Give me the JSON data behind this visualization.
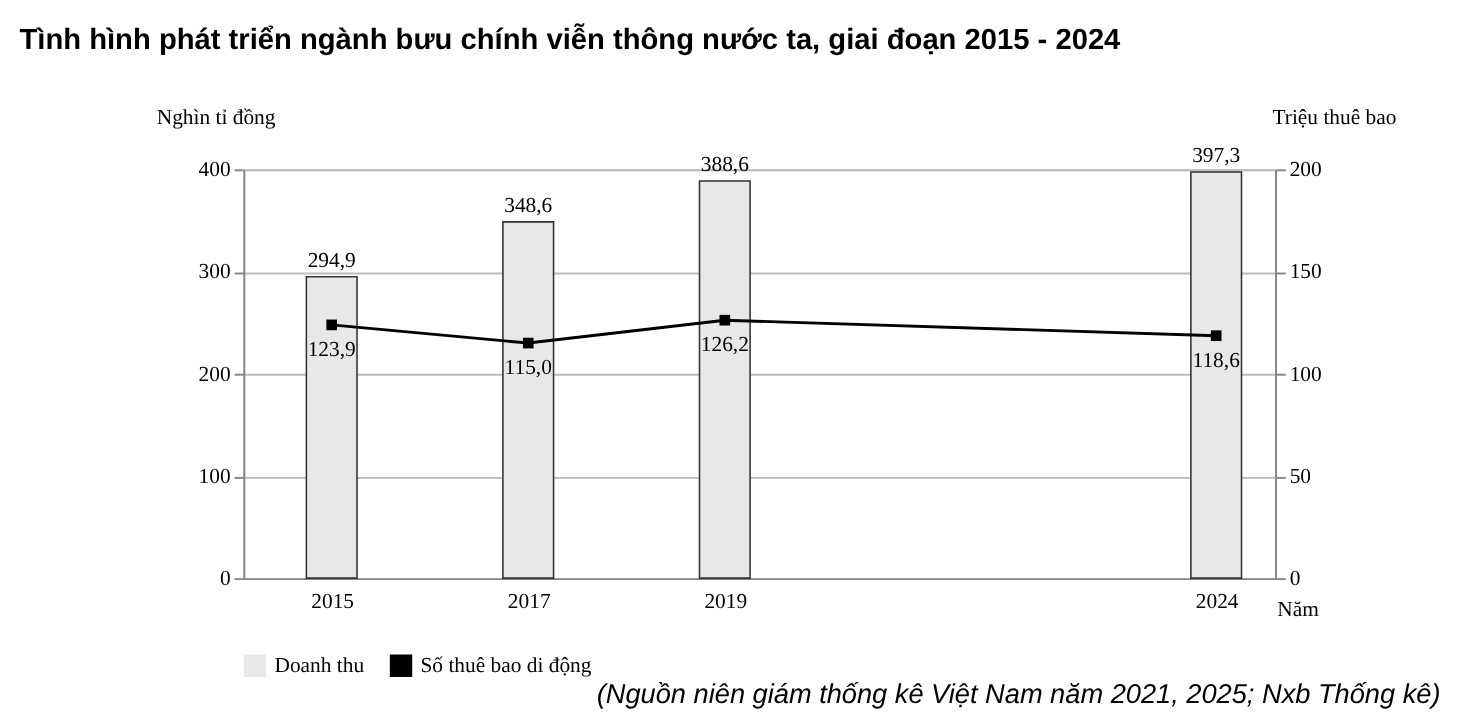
{
  "chart_data": {
    "type": "bar",
    "title": "Tình hình phát triển ngành bưu chính viễn thông nước ta, giai đoạn 2015 - 2024",
    "x": [
      2015,
      2017,
      2019,
      2024
    ],
    "xlim": [
      2014.2,
      2024.5
    ],
    "xticks": [
      2015,
      2017,
      2019,
      2024
    ],
    "xlabel": "Năm",
    "ylabel": "Nghìn tỉ đồng",
    "y2label": "Triệu thuê bao",
    "ylim": [
      0,
      400
    ],
    "yticks": [
      0,
      100,
      200,
      300,
      400
    ],
    "y2lim": [
      0,
      200
    ],
    "y2ticks": [
      0,
      50,
      100,
      150,
      200
    ],
    "series": [
      {
        "name": "Doanh thu",
        "color": "#e8e8e8",
        "values": [
          294.9,
          348.6,
          388.6,
          397.3
        ],
        "value_labels": [
          "294,9",
          "348,6",
          "388,6",
          "397,3"
        ]
      },
      {
        "name": "Số thuê bao di động",
        "type": "line",
        "axis": "y2",
        "color": "#000000",
        "marker": "square",
        "values": [
          123.9,
          115.0,
          126.2,
          118.6
        ],
        "value_labels": [
          "123,9",
          "115,0",
          "126,2",
          "118,6"
        ]
      }
    ],
    "grid": "y",
    "legend": "bottom",
    "annotations": [
      "(Nguồn niên giám thống kê Việt Nam năm 2021, 2025; Nxb Thống kê)"
    ]
  }
}
